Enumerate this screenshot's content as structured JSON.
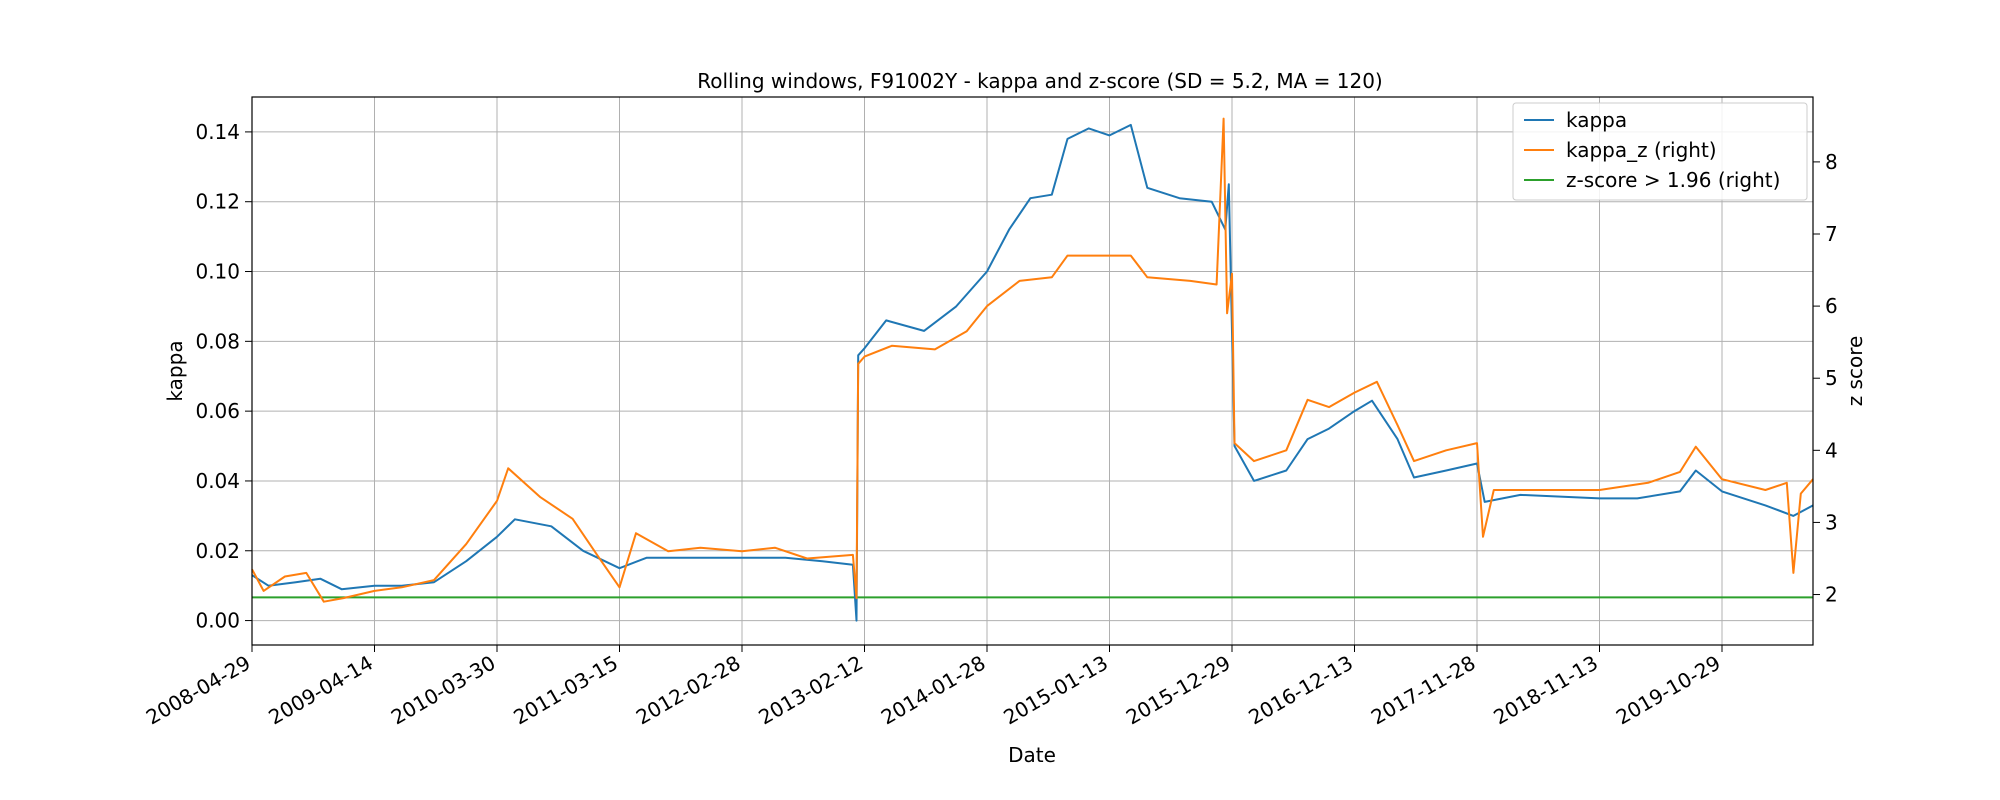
{
  "chart_data": {
    "type": "line",
    "title": "Rolling windows, F91002Y - kappa and z-score (SD = 5.2, MA = 120)",
    "xlabel": "Date",
    "ylabel": "kappa",
    "ylabel_right": "z score",
    "xlim": [
      "2008-04-29",
      "2020-07-15"
    ],
    "ylim": [
      -0.007,
      0.15
    ],
    "ylim_right": [
      1.3,
      8.9
    ],
    "x_ticks": [
      "2008-04-29",
      "2009-04-14",
      "2010-03-30",
      "2011-03-15",
      "2012-02-28",
      "2013-02-12",
      "2014-01-28",
      "2015-01-13",
      "2015-12-29",
      "2016-12-13",
      "2017-11-28",
      "2018-11-13",
      "2019-10-29"
    ],
    "y_ticks": [
      "0.00",
      "0.02",
      "0.04",
      "0.06",
      "0.08",
      "0.10",
      "0.12",
      "0.14"
    ],
    "y_ticks_right": [
      "2",
      "3",
      "4",
      "5",
      "6",
      "7",
      "8"
    ],
    "grid": true,
    "legend_position": "top-right",
    "legend": [
      {
        "label": "kappa",
        "color": "#1f77b4"
      },
      {
        "label": "kappa_z (right)",
        "color": "#ff7f0e"
      },
      {
        "label": "z-score > 1.96 (right)",
        "color": "#2ca02c"
      }
    ],
    "series": [
      {
        "name": "kappa",
        "axis": "left",
        "color": "#1f77b4",
        "points": [
          [
            "2008-04-29",
            0.013
          ],
          [
            "2008-06-15",
            0.01
          ],
          [
            "2008-09-01",
            0.011
          ],
          [
            "2008-11-10",
            0.012
          ],
          [
            "2009-01-10",
            0.009
          ],
          [
            "2009-04-14",
            0.01
          ],
          [
            "2009-07-01",
            0.01
          ],
          [
            "2009-10-01",
            0.011
          ],
          [
            "2010-01-01",
            0.017
          ],
          [
            "2010-03-30",
            0.024
          ],
          [
            "2010-05-20",
            0.029
          ],
          [
            "2010-09-01",
            0.027
          ],
          [
            "2010-12-01",
            0.02
          ],
          [
            "2011-03-15",
            0.015
          ],
          [
            "2011-06-01",
            0.018
          ],
          [
            "2011-09-01",
            0.018
          ],
          [
            "2012-02-28",
            0.018
          ],
          [
            "2012-07-01",
            0.018
          ],
          [
            "2012-10-15",
            0.017
          ],
          [
            "2013-01-10",
            0.016
          ],
          [
            "2013-01-20",
            0.0
          ],
          [
            "2013-01-25",
            0.076
          ],
          [
            "2013-02-12",
            0.078
          ],
          [
            "2013-04-15",
            0.086
          ],
          [
            "2013-08-01",
            0.083
          ],
          [
            "2013-11-01",
            0.09
          ],
          [
            "2014-01-28",
            0.1
          ],
          [
            "2014-04-01",
            0.112
          ],
          [
            "2014-06-01",
            0.121
          ],
          [
            "2014-08-01",
            0.122
          ],
          [
            "2014-09-15",
            0.138
          ],
          [
            "2014-11-15",
            0.141
          ],
          [
            "2015-01-13",
            0.139
          ],
          [
            "2015-03-15",
            0.142
          ],
          [
            "2015-05-01",
            0.124
          ],
          [
            "2015-08-01",
            0.121
          ],
          [
            "2015-11-01",
            0.12
          ],
          [
            "2015-12-10",
            0.112
          ],
          [
            "2015-12-20",
            0.125
          ],
          [
            "2016-01-05",
            0.05
          ],
          [
            "2016-03-01",
            0.04
          ],
          [
            "2016-06-01",
            0.043
          ],
          [
            "2016-08-01",
            0.052
          ],
          [
            "2016-10-01",
            0.055
          ],
          [
            "2016-12-13",
            0.06
          ],
          [
            "2017-02-01",
            0.063
          ],
          [
            "2017-04-15",
            0.052
          ],
          [
            "2017-06-01",
            0.041
          ],
          [
            "2017-09-01",
            0.043
          ],
          [
            "2017-11-28",
            0.045
          ],
          [
            "2017-12-20",
            0.034
          ],
          [
            "2018-04-01",
            0.036
          ],
          [
            "2018-11-13",
            0.035
          ],
          [
            "2019-03-01",
            0.035
          ],
          [
            "2019-07-01",
            0.037
          ],
          [
            "2019-08-15",
            0.043
          ],
          [
            "2019-10-29",
            0.037
          ],
          [
            "2020-03-01",
            0.033
          ],
          [
            "2020-05-20",
            0.03
          ],
          [
            "2020-07-15",
            0.033
          ]
        ]
      },
      {
        "name": "kappa_z (right)",
        "axis": "right",
        "color": "#ff7f0e",
        "points": [
          [
            "2008-04-29",
            2.35
          ],
          [
            "2008-06-01",
            2.05
          ],
          [
            "2008-08-01",
            2.25
          ],
          [
            "2008-10-01",
            2.3
          ],
          [
            "2008-11-20",
            1.9
          ],
          [
            "2009-01-15",
            1.95
          ],
          [
            "2009-04-14",
            2.05
          ],
          [
            "2009-07-01",
            2.1
          ],
          [
            "2009-10-01",
            2.2
          ],
          [
            "2010-01-01",
            2.7
          ],
          [
            "2010-03-30",
            3.3
          ],
          [
            "2010-05-01",
            3.75
          ],
          [
            "2010-08-01",
            3.35
          ],
          [
            "2010-11-01",
            3.05
          ],
          [
            "2011-01-10",
            2.55
          ],
          [
            "2011-03-15",
            2.1
          ],
          [
            "2011-05-01",
            2.85
          ],
          [
            "2011-08-01",
            2.6
          ],
          [
            "2011-11-01",
            2.65
          ],
          [
            "2012-02-28",
            2.6
          ],
          [
            "2012-06-01",
            2.65
          ],
          [
            "2012-09-01",
            2.5
          ],
          [
            "2013-01-10",
            2.55
          ],
          [
            "2013-01-20",
            1.95
          ],
          [
            "2013-01-25",
            5.2
          ],
          [
            "2013-02-12",
            5.3
          ],
          [
            "2013-05-01",
            5.45
          ],
          [
            "2013-09-01",
            5.4
          ],
          [
            "2013-12-01",
            5.65
          ],
          [
            "2014-01-28",
            6.0
          ],
          [
            "2014-05-01",
            6.35
          ],
          [
            "2014-08-01",
            6.4
          ],
          [
            "2014-09-15",
            6.7
          ],
          [
            "2014-12-01",
            6.7
          ],
          [
            "2015-01-13",
            6.7
          ],
          [
            "2015-03-15",
            6.7
          ],
          [
            "2015-05-01",
            6.4
          ],
          [
            "2015-09-01",
            6.35
          ],
          [
            "2015-11-15",
            6.3
          ],
          [
            "2015-12-05",
            8.6
          ],
          [
            "2015-12-15",
            5.9
          ],
          [
            "2015-12-29",
            6.45
          ],
          [
            "2016-01-05",
            4.1
          ],
          [
            "2016-03-01",
            3.85
          ],
          [
            "2016-06-01",
            4.0
          ],
          [
            "2016-08-01",
            4.7
          ],
          [
            "2016-10-01",
            4.6
          ],
          [
            "2016-12-13",
            4.8
          ],
          [
            "2017-02-15",
            4.95
          ],
          [
            "2017-04-15",
            4.35
          ],
          [
            "2017-06-01",
            3.85
          ],
          [
            "2017-09-01",
            4.0
          ],
          [
            "2017-11-28",
            4.1
          ],
          [
            "2017-12-15",
            2.8
          ],
          [
            "2018-01-15",
            3.45
          ],
          [
            "2018-05-01",
            3.45
          ],
          [
            "2018-11-13",
            3.45
          ],
          [
            "2019-04-01",
            3.55
          ],
          [
            "2019-07-01",
            3.7
          ],
          [
            "2019-08-15",
            4.05
          ],
          [
            "2019-10-29",
            3.6
          ],
          [
            "2020-03-01",
            3.45
          ],
          [
            "2020-05-01",
            3.55
          ],
          [
            "2020-05-20",
            2.3
          ],
          [
            "2020-06-10",
            3.4
          ],
          [
            "2020-07-15",
            3.6
          ]
        ]
      },
      {
        "name": "z-score > 1.96 (right)",
        "axis": "right",
        "color": "#2ca02c",
        "points": [
          [
            "2008-04-29",
            1.96
          ],
          [
            "2020-07-15",
            1.96
          ]
        ]
      }
    ]
  }
}
